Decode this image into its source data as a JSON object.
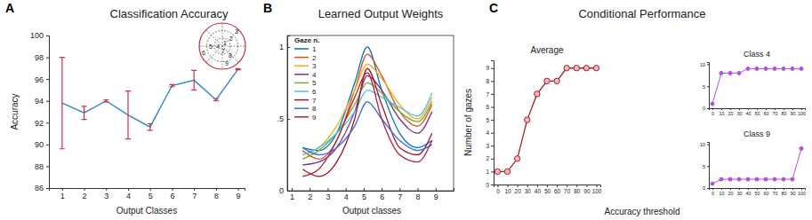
{
  "chart_data": [
    {
      "type": "line",
      "panel_label": "A",
      "title": "Classification Accuracy",
      "x_label": "Output Classes",
      "y_label": "Accuracy",
      "x": [
        1,
        2,
        3,
        4,
        5,
        6,
        7,
        8,
        9
      ],
      "xlim": [
        0.4,
        9.3
      ],
      "xticks": [
        1,
        2,
        3,
        4,
        5,
        6,
        7,
        8,
        9
      ],
      "ylim": [
        86,
        100
      ],
      "yticks": [
        86,
        88,
        90,
        92,
        94,
        96,
        98,
        100
      ],
      "series": [
        {
          "color": "#2e86d6",
          "values": [
            93.8,
            92.9,
            94.0,
            92.7,
            91.6,
            95.4,
            95.9,
            94.1,
            96.9
          ],
          "errors": [
            4.2,
            0.6,
            0.1,
            2.2,
            0.3,
            0.1,
            0.9,
            0.1,
            0.05
          ]
        }
      ],
      "inset_labels": [
        "1",
        "2",
        "3",
        "4",
        "5",
        "6",
        "7",
        "8",
        "9"
      ]
    },
    {
      "type": "line",
      "panel_label": "B",
      "title": "Learned Output Weights",
      "x_label": "Output classes",
      "legend_title": "Gaze n.",
      "legend": "upper left",
      "x": [
        1.6,
        2.5,
        3.5,
        4.5,
        5.2,
        6,
        7,
        8,
        8.8
      ],
      "xlim": [
        0.75,
        10
      ],
      "xticks": [
        1,
        2,
        3,
        4,
        5,
        6,
        7,
        8,
        9
      ],
      "ylim": [
        0,
        1.08
      ],
      "yticks": [
        0,
        {
          "value": 0.5,
          "label": ".5"
        },
        1
      ],
      "series": [
        {
          "name": "1",
          "color": "#0072bd",
          "values": [
            0.3,
            0.28,
            0.4,
            0.75,
            1.0,
            0.7,
            0.4,
            0.3,
            0.35
          ]
        },
        {
          "name": "2",
          "color": "#d95319",
          "values": [
            0.28,
            0.22,
            0.35,
            0.7,
            0.95,
            0.8,
            0.55,
            0.45,
            0.6
          ]
        },
        {
          "name": "3",
          "color": "#edb120",
          "values": [
            0.25,
            0.3,
            0.45,
            0.7,
            0.88,
            0.78,
            0.6,
            0.5,
            0.65
          ]
        },
        {
          "name": "4",
          "color": "#7e2f8e",
          "values": [
            0.18,
            0.2,
            0.3,
            0.55,
            0.8,
            0.7,
            0.5,
            0.4,
            0.55
          ]
        },
        {
          "name": "5",
          "color": "#77ac30",
          "values": [
            0.22,
            0.28,
            0.4,
            0.6,
            0.75,
            0.68,
            0.55,
            0.48,
            0.62
          ]
        },
        {
          "name": "6",
          "color": "#4dbeee",
          "values": [
            0.25,
            0.3,
            0.4,
            0.55,
            0.7,
            0.65,
            0.58,
            0.52,
            0.68
          ]
        },
        {
          "name": "7",
          "color": "#a2142f",
          "values": [
            0.15,
            0.1,
            0.2,
            0.5,
            0.85,
            0.6,
            0.3,
            0.25,
            0.4
          ]
        },
        {
          "name": "8",
          "color": "#3070e0",
          "values": [
            0.3,
            0.25,
            0.3,
            0.45,
            0.62,
            0.5,
            0.35,
            0.28,
            0.32
          ]
        },
        {
          "name": "9",
          "color": "#b0203a",
          "values": [
            0.1,
            0.15,
            0.35,
            0.65,
            0.82,
            0.5,
            0.25,
            0.2,
            0.35
          ]
        }
      ]
    },
    {
      "type": "line",
      "panel_label": "C",
      "title": "Conditional Performance",
      "subtitle": "Average",
      "x_label": "Accuracy threshold",
      "y_label": "Number of gazes",
      "x": [
        0,
        10,
        20,
        30,
        40,
        50,
        60,
        70,
        80,
        90,
        100
      ],
      "xlim": [
        -4,
        104
      ],
      "xticks": [
        0,
        10,
        20,
        30,
        40,
        50,
        60,
        70,
        80,
        90,
        100
      ],
      "ylim": [
        0,
        9.6
      ],
      "yticks": [
        0,
        1,
        2,
        3,
        4,
        5,
        6,
        7,
        8,
        9
      ],
      "series": [
        {
          "color": "#a0202a",
          "marker": "circle",
          "values": [
            1,
            1,
            2,
            5,
            7,
            8,
            8,
            9,
            9,
            9,
            9
          ]
        }
      ]
    },
    {
      "type": "line",
      "subtitle": "Class 4",
      "x": [
        0,
        10,
        20,
        30,
        40,
        50,
        60,
        70,
        80,
        90,
        100
      ],
      "xlim": [
        -4,
        104
      ],
      "xticks": [
        0,
        10,
        20,
        30,
        40,
        50,
        60,
        70,
        80,
        90,
        100
      ],
      "ylim": [
        0,
        10.5
      ],
      "yticks": [
        0,
        5,
        10
      ],
      "series": [
        {
          "color": "#b44ee0",
          "marker": "circle",
          "values": [
            1,
            8,
            8,
            8,
            9,
            9,
            9,
            9,
            9,
            9,
            9
          ]
        }
      ]
    },
    {
      "type": "line",
      "subtitle": "Class 9",
      "x": [
        0,
        10,
        20,
        30,
        40,
        50,
        60,
        70,
        80,
        90,
        100
      ],
      "xlim": [
        -4,
        104
      ],
      "xticks": [
        0,
        10,
        20,
        30,
        40,
        50,
        60,
        70,
        80,
        90,
        100
      ],
      "ylim": [
        0,
        10.5
      ],
      "yticks": [
        0,
        5,
        10
      ],
      "series": [
        {
          "color": "#b44ee0",
          "marker": "circle",
          "values": [
            1,
            2,
            2,
            2,
            2,
            2,
            2,
            2,
            2,
            2,
            9
          ]
        }
      ]
    }
  ]
}
